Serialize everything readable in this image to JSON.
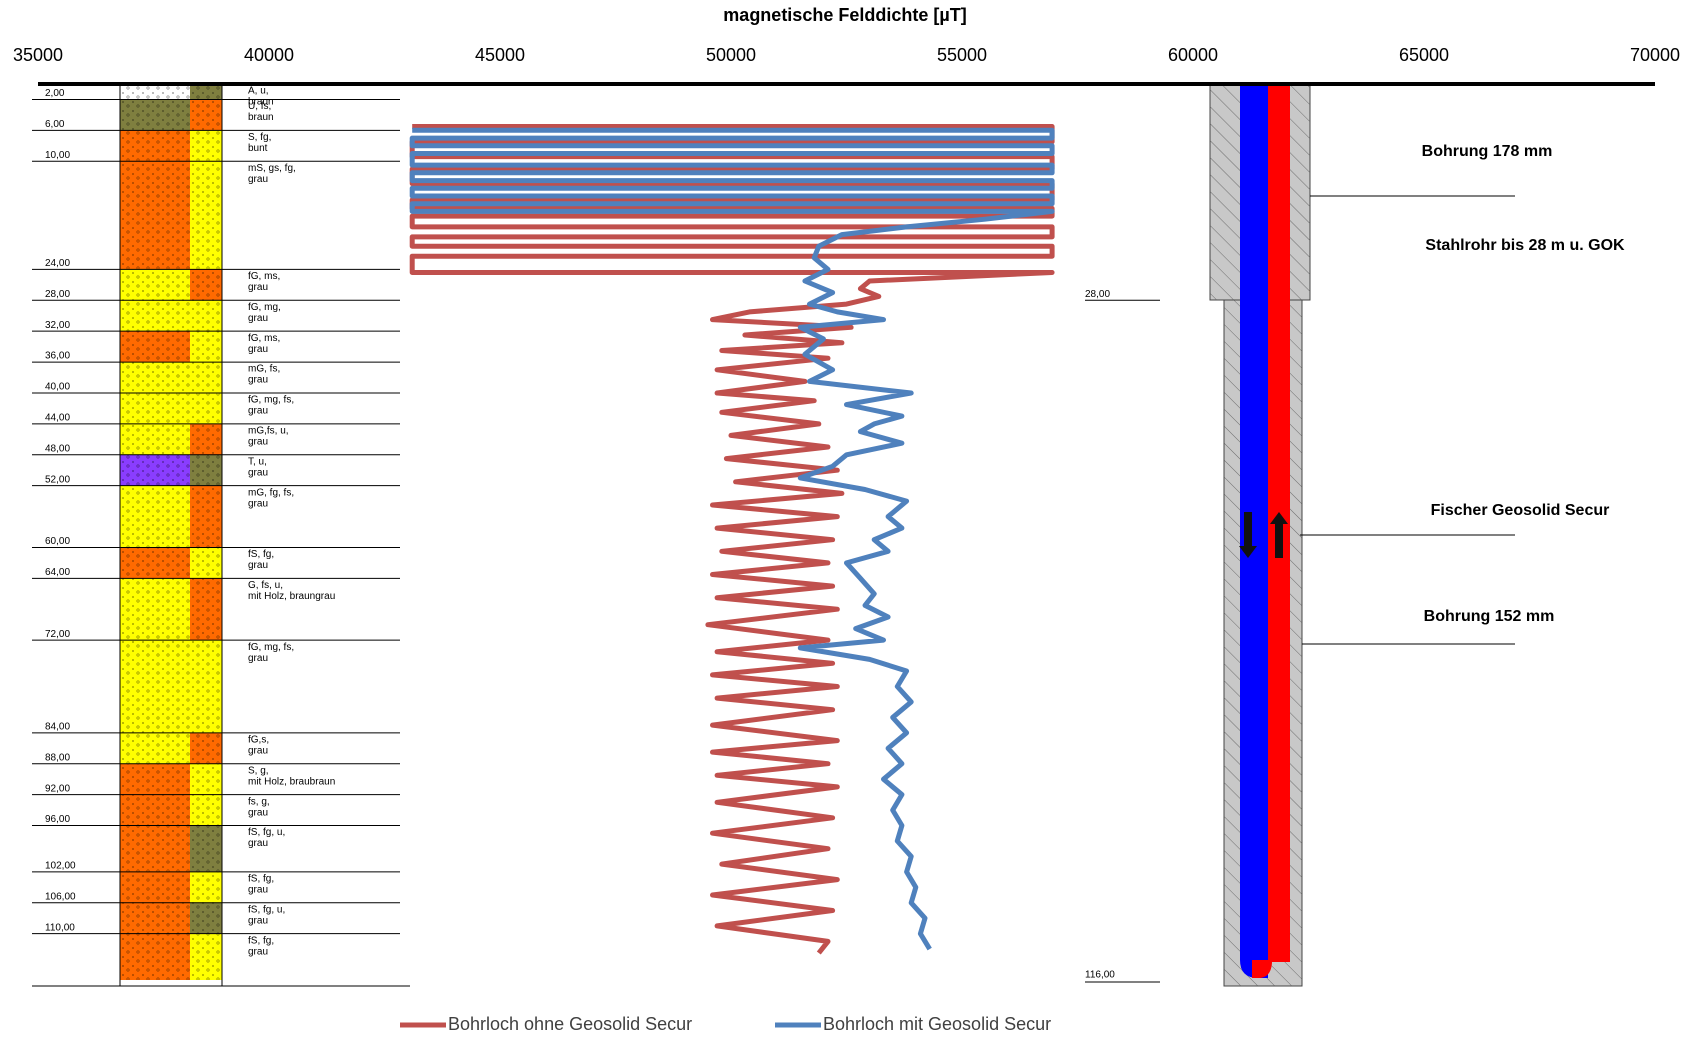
{
  "chart_data": {
    "type": "line",
    "title": "magnetische Felddichte [µT]",
    "xlim": [
      35000,
      70000
    ],
    "xticks": [
      35000,
      40000,
      45000,
      50000,
      55000,
      60000,
      65000,
      70000
    ],
    "ylim": [
      0,
      116
    ],
    "series": [
      {
        "name": "Bohrloch ohne Geosolid Secur",
        "color": "#c0504d",
        "depth": [
          5.5,
          5.5,
          7.5,
          7.5,
          9.4,
          9.4,
          11,
          11,
          12.9,
          12.9,
          15,
          15,
          16.1,
          16.1,
          17.1,
          17.1,
          18.5,
          18.5,
          19.8,
          19.8,
          21,
          21,
          22.3,
          22.3,
          24.4,
          24.4,
          25.5,
          26.5,
          27.5,
          28.5,
          29.5,
          30.5,
          31.5,
          32.5,
          33.5,
          34.5,
          35.5,
          37,
          38.5,
          40,
          41,
          42.5,
          44,
          45.5,
          47,
          48.5,
          50,
          51.5,
          53,
          54.5,
          56,
          57.5,
          59,
          60.5,
          62,
          63.5,
          65,
          66.5,
          68,
          70,
          72,
          73.5,
          75,
          76.5,
          78,
          79.5,
          81,
          83,
          85,
          86.5,
          88,
          89.5,
          91,
          93,
          95,
          97,
          99,
          101,
          103,
          105,
          107,
          109,
          111,
          112.5
        ],
        "values": [
          43100,
          56950,
          56950,
          43100,
          43100,
          56950,
          56950,
          43100,
          43100,
          56950,
          56950,
          43100,
          43100,
          56950,
          56950,
          43100,
          43100,
          56950,
          56950,
          43100,
          43100,
          56950,
          56950,
          43100,
          43100,
          56950,
          53000,
          52800,
          53200,
          52500,
          50400,
          49600,
          52600,
          50300,
          52400,
          49800,
          52100,
          49700,
          51600,
          49700,
          51800,
          49800,
          51900,
          50000,
          52100,
          49900,
          52300,
          50100,
          52400,
          49600,
          52300,
          49700,
          52200,
          49800,
          52100,
          49600,
          52200,
          49700,
          52300,
          49500,
          52100,
          49700,
          52200,
          49600,
          52300,
          49700,
          52200,
          49600,
          52300,
          49600,
          52100,
          49700,
          52300,
          49700,
          52200,
          49600,
          52100,
          49800,
          52300,
          49600,
          52200,
          49700,
          52100,
          51900
        ]
      },
      {
        "name": "Bohrloch mit Geosolid Secur",
        "color": "#4f81bd",
        "depth": [
          6,
          6,
          7,
          7,
          8,
          8,
          9,
          9,
          10.5,
          10.5,
          11.5,
          11.5,
          12.5,
          12.5,
          13.5,
          13.5,
          14.5,
          14.5,
          15.5,
          15.5,
          16.5,
          16.5,
          17.5,
          18.5,
          19.5,
          21,
          22.5,
          24,
          25.5,
          27,
          28.5,
          29.5,
          30.5,
          31.5,
          33,
          35,
          37,
          38.5,
          40,
          41.5,
          43,
          44,
          45,
          46.5,
          48,
          49.5,
          51,
          52.5,
          54,
          56,
          57.5,
          59,
          60.5,
          62,
          64,
          66,
          67.5,
          69,
          70.5,
          72,
          73,
          74.5,
          76,
          78,
          80,
          82,
          84,
          86,
          88,
          90,
          92,
          94,
          96,
          98,
          100,
          102,
          104,
          106,
          108,
          110,
          112
        ],
        "values": [
          43100,
          56950,
          56950,
          43100,
          43100,
          56950,
          56950,
          43100,
          43100,
          56950,
          56950,
          43100,
          43100,
          56950,
          56950,
          43100,
          43100,
          56950,
          56950,
          43100,
          43100,
          56950,
          55500,
          53800,
          52400,
          51900,
          51800,
          52100,
          51600,
          52200,
          51700,
          52300,
          53300,
          51500,
          52000,
          51600,
          52200,
          51700,
          53900,
          52500,
          53700,
          53100,
          52800,
          53700,
          52500,
          52200,
          51500,
          52900,
          53800,
          53400,
          53700,
          53100,
          53400,
          52500,
          52800,
          53100,
          52900,
          53400,
          52700,
          53300,
          51500,
          53000,
          53800,
          53600,
          53900,
          53500,
          53800,
          53400,
          53700,
          53300,
          53700,
          53500,
          53700,
          53600,
          53900,
          53800,
          54000,
          53900,
          54200,
          54100,
          54300
        ]
      }
    ],
    "depth_labels": [
      {
        "value": 2,
        "label": "2,00"
      },
      {
        "value": 6,
        "label": "6,00"
      },
      {
        "value": 10,
        "label": "10,00"
      },
      {
        "value": 24,
        "label": "24,00"
      },
      {
        "value": 28,
        "label": "28,00"
      },
      {
        "value": 32,
        "label": "32,00"
      },
      {
        "value": 36,
        "label": "36,00"
      },
      {
        "value": 40,
        "label": "40,00"
      },
      {
        "value": 44,
        "label": "44,00"
      },
      {
        "value": 48,
        "label": "48,00"
      },
      {
        "value": 52,
        "label": "52,00"
      },
      {
        "value": 60,
        "label": "60,00"
      },
      {
        "value": 64,
        "label": "64,00"
      },
      {
        "value": 72,
        "label": "72,00"
      },
      {
        "value": 84,
        "label": "84,00"
      },
      {
        "value": 88,
        "label": "88,00"
      },
      {
        "value": 92,
        "label": "92,00"
      },
      {
        "value": 96,
        "label": "96,00"
      },
      {
        "value": 102,
        "label": "102,00"
      },
      {
        "value": 106,
        "label": "106,00"
      },
      {
        "value": 110,
        "label": "110,00"
      },
      {
        "value": 116,
        "label": "116,00"
      }
    ],
    "layers": [
      {
        "top": 0,
        "bottom": 2,
        "description": [
          "A, u,",
          "braun"
        ],
        "colors": [
          "#ffffff",
          "#7f7f3f"
        ]
      },
      {
        "top": 2,
        "bottom": 6,
        "description": [
          "U, fs,",
          "braun"
        ],
        "colors": [
          "#7f7f3f",
          "#ff6a00"
        ]
      },
      {
        "top": 6,
        "bottom": 10,
        "description": [
          "S, fg,",
          "bunt"
        ],
        "colors": [
          "#ff6a00",
          "#ffff00"
        ]
      },
      {
        "top": 10,
        "bottom": 24,
        "description": [
          "mS, gs, fg,",
          "grau"
        ],
        "colors": [
          "#ff6a00",
          "#ffff00"
        ]
      },
      {
        "top": 24,
        "bottom": 28,
        "description": [
          "fG, ms,",
          "grau"
        ],
        "colors": [
          "#ffff00",
          "#ff6a00"
        ]
      },
      {
        "top": 28,
        "bottom": 32,
        "description": [
          "fG, mg,",
          "grau"
        ],
        "colors": [
          "#ffff00",
          "#ffff00"
        ]
      },
      {
        "top": 32,
        "bottom": 36,
        "description": [
          "fG, ms,",
          "grau"
        ],
        "colors": [
          "#ff6a00",
          "#ffff00"
        ]
      },
      {
        "top": 36,
        "bottom": 40,
        "description": [
          "mG, fs,",
          "grau"
        ],
        "colors": [
          "#ffff00",
          "#ffff00"
        ]
      },
      {
        "top": 40,
        "bottom": 44,
        "description": [
          "fG, mg, fs,",
          "grau"
        ],
        "colors": [
          "#ffff00",
          "#ffff00"
        ]
      },
      {
        "top": 44,
        "bottom": 48,
        "description": [
          "mG,fs, u,",
          "grau"
        ],
        "colors": [
          "#ffff00",
          "#ff6a00"
        ]
      },
      {
        "top": 48,
        "bottom": 52,
        "description": [
          "T, u,",
          "grau"
        ],
        "colors": [
          "#8a3dff",
          "#7f7f3f"
        ]
      },
      {
        "top": 52,
        "bottom": 60,
        "description": [
          "mG, fg, fs,",
          "grau"
        ],
        "colors": [
          "#ffff00",
          "#ff6a00"
        ]
      },
      {
        "top": 60,
        "bottom": 64,
        "description": [
          "fS, fg,",
          "grau"
        ],
        "colors": [
          "#ff6a00",
          "#ffff00"
        ]
      },
      {
        "top": 64,
        "bottom": 72,
        "description": [
          "G, fs, u,",
          "mit Holz, braungrau"
        ],
        "colors": [
          "#ffff00",
          "#ff6a00"
        ]
      },
      {
        "top": 72,
        "bottom": 84,
        "description": [
          "fG, mg, fs,",
          "grau"
        ],
        "colors": [
          "#ffff00",
          "#ffff00"
        ]
      },
      {
        "top": 84,
        "bottom": 88,
        "description": [
          "fG,s,",
          "grau"
        ],
        "colors": [
          "#ffff00",
          "#ff6a00"
        ]
      },
      {
        "top": 88,
        "bottom": 92,
        "description": [
          "S, g,",
          "mit Holz, braubraun"
        ],
        "colors": [
          "#ff6a00",
          "#ffff00"
        ]
      },
      {
        "top": 92,
        "bottom": 96,
        "description": [
          "fs, g,",
          "grau"
        ],
        "colors": [
          "#ff6a00",
          "#ffff00"
        ]
      },
      {
        "top": 96,
        "bottom": 102,
        "description": [
          "fS, fg, u,",
          "grau"
        ],
        "colors": [
          "#ff6a00",
          "#7f7f3f"
        ]
      },
      {
        "top": 102,
        "bottom": 106,
        "description": [
          "fS, fg,",
          "grau"
        ],
        "colors": [
          "#ff6a00",
          "#ffff00"
        ]
      },
      {
        "top": 106,
        "bottom": 110,
        "description": [
          "fS, fg, u,",
          "grau"
        ],
        "colors": [
          "#ff6a00",
          "#7f7f3f"
        ]
      },
      {
        "top": 110,
        "bottom": 116,
        "description": [
          "fS, fg,",
          "grau"
        ],
        "colors": [
          "#ff6a00",
          "#ffff00"
        ]
      }
    ],
    "well_labels": [
      "Bohrung 178 mm",
      "Stahlrohr bis 28 m u. GOK",
      "Fischer Geosolid Secur",
      "Bohrung 152 mm"
    ]
  }
}
